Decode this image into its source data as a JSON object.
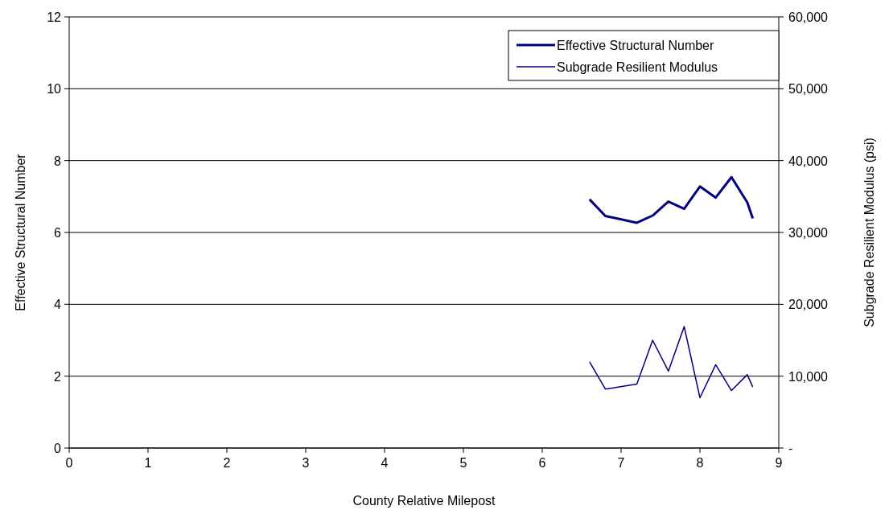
{
  "chart_data": {
    "type": "line",
    "xlabel": "County Relative Milepost",
    "ylabel": "Effective Structural Number",
    "y2label": "Subgrade Resilient Modulus (psi)",
    "xlim": [
      0,
      9
    ],
    "xticks": [
      0,
      1,
      2,
      3,
      4,
      5,
      6,
      7,
      8,
      9
    ],
    "ylim": [
      0,
      12
    ],
    "yticks": [
      0,
      2,
      4,
      6,
      8,
      10,
      12
    ],
    "y2lim": [
      0,
      60000
    ],
    "y2ticks": [
      {
        "value": 0,
        "label": "-"
      },
      {
        "value": 10000,
        "label": "10,000"
      },
      {
        "value": 20000,
        "label": "20,000"
      },
      {
        "value": 30000,
        "label": "30,000"
      },
      {
        "value": 40000,
        "label": "40,000"
      },
      {
        "value": 50000,
        "label": "50,000"
      },
      {
        "value": 60000,
        "label": "60,000"
      }
    ],
    "grid": "y",
    "legend": "top right",
    "marker": "none",
    "series": [
      {
        "name": "Effective Structural Number",
        "color": "#000080",
        "x": [
          6.6,
          6.8,
          7.2,
          7.4,
          7.6,
          7.8,
          8.0,
          8.2,
          8.4,
          8.6,
          8.67
        ],
        "values": [
          6.92,
          6.46,
          6.27,
          6.47,
          6.86,
          6.66,
          7.28,
          6.97,
          7.54,
          6.84,
          6.39
        ]
      },
      {
        "name": "Subgrade Resilient Modulus",
        "color": "#000080",
        "axis": "y2",
        "x": [
          6.6,
          6.8,
          7.2,
          7.4,
          7.6,
          7.8,
          8.0,
          8.2,
          8.4,
          8.6,
          8.67
        ],
        "values": [
          12000,
          8200,
          8900,
          15000,
          10700,
          16900,
          7000,
          11600,
          8000,
          10200,
          8500
        ]
      }
    ]
  }
}
